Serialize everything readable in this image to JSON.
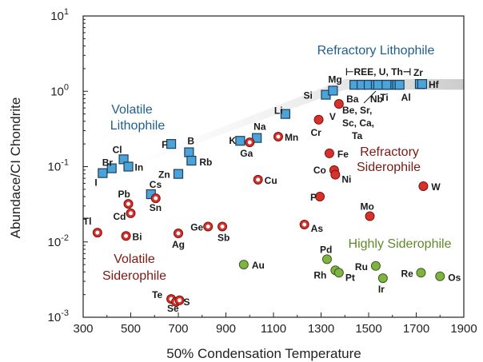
{
  "chart_data": {
    "type": "scatter",
    "title": "",
    "xlabel": "50% Condensation Temperature",
    "ylabel": "Abundace/CI Chondrite",
    "xlim": [
      300,
      1900
    ],
    "ylim_log10": [
      -3,
      1
    ],
    "yscale": "log",
    "x_ticks": [
      "300",
      "500",
      "700",
      "900",
      "1100",
      "1300",
      "1500",
      "1700",
      "1900"
    ],
    "y_ticks": [
      {
        "base": "10",
        "exp": "-3"
      },
      {
        "base": "10",
        "exp": "-2"
      },
      {
        "base": "10",
        "exp": "-1"
      },
      {
        "base": "10",
        "exp": "0"
      },
      {
        "base": "10",
        "exp": "1"
      }
    ],
    "colors": {
      "lithophile_fill": "#4ba3d8",
      "lithophile_stroke": "#1c3f5e",
      "siderophile_fill": "#d9302a",
      "siderophile_stroke": "#7a1212",
      "highly_fill": "#7fb342",
      "highly_stroke": "#3e5a1f",
      "ann_blue": "#1f5f8f",
      "ann_red": "#7a1a12",
      "ann_green": "#5f8a2a",
      "band": "#cccccc"
    },
    "annotations": {
      "volatile_lithophile": [
        "Volatile",
        "Lithophile"
      ],
      "refractory_lithophile": "Refractory Lithophile",
      "refractory_siderophile": [
        "Refractory",
        "Siderophile"
      ],
      "volatile_siderophile": [
        "Volatile",
        "Siderophile"
      ],
      "highly_siderophile": "Highly Siderophile",
      "ree": "⊢REE, U, Th⊣",
      "be_group": [
        "Be, Sr,",
        "Sc, Ca,",
        "Ta"
      ]
    },
    "series": [
      {
        "group": "lithophile",
        "marker": "square",
        "points": [
          {
            "label": "I",
            "x": 382,
            "y": 0.082
          },
          {
            "label": "Br",
            "x": 420,
            "y": 0.095
          },
          {
            "label": "Cl",
            "x": 470,
            "y": 0.125
          },
          {
            "label": "In",
            "x": 490,
            "y": 0.1
          },
          {
            "label": "Cs",
            "x": 585,
            "y": 0.043
          },
          {
            "label": "Zn",
            "x": 700,
            "y": 0.08
          },
          {
            "label": "F",
            "x": 670,
            "y": 0.2
          },
          {
            "label": "B",
            "x": 745,
            "y": 0.155
          },
          {
            "label": "Rb",
            "x": 755,
            "y": 0.12
          },
          {
            "label": "K",
            "x": 960,
            "y": 0.22
          },
          {
            "label": "Na",
            "x": 1030,
            "y": 0.24
          },
          {
            "label": "Li",
            "x": 1150,
            "y": 0.5
          },
          {
            "label": "Si",
            "x": 1320,
            "y": 0.9
          },
          {
            "label": "Mg",
            "x": 1350,
            "y": 1.02
          },
          {
            "label": "Ba",
            "x": 1440,
            "y": 1.22
          },
          {
            "label": "",
            "x": 1470,
            "y": 1.22
          },
          {
            "label": "",
            "x": 1500,
            "y": 1.22
          },
          {
            "label": "",
            "x": 1530,
            "y": 1.22
          },
          {
            "label": "",
            "x": 1560,
            "y": 1.22
          },
          {
            "label": "",
            "x": 1590,
            "y": 1.22
          },
          {
            "label": "",
            "x": 1620,
            "y": 1.22
          },
          {
            "label": "Nb",
            "x": 1540,
            "y": 1.22
          },
          {
            "label": "Ti",
            "x": 1575,
            "y": 1.22
          },
          {
            "label": "Al",
            "x": 1630,
            "y": 1.22
          },
          {
            "label": "Zr",
            "x": 1715,
            "y": 1.25
          },
          {
            "label": "Hf",
            "x": 1725,
            "y": 1.25
          }
        ]
      },
      {
        "group": "volatile_siderophile",
        "marker": "ring",
        "points": [
          {
            "label": "Tl",
            "x": 360,
            "y": 0.0133
          },
          {
            "label": "Bi",
            "x": 480,
            "y": 0.012
          },
          {
            "label": "Pb",
            "x": 490,
            "y": 0.032
          },
          {
            "label": "Cd",
            "x": 500,
            "y": 0.024
          },
          {
            "label": "Sn",
            "x": 605,
            "y": 0.038
          },
          {
            "label": "Ag",
            "x": 700,
            "y": 0.013
          },
          {
            "label": "Ge",
            "x": 825,
            "y": 0.016
          },
          {
            "label": "Sb",
            "x": 885,
            "y": 0.016
          },
          {
            "label": "Ga",
            "x": 1000,
            "y": 0.21
          },
          {
            "label": "Mn",
            "x": 1120,
            "y": 0.25
          },
          {
            "label": "Cu",
            "x": 1035,
            "y": 0.067
          },
          {
            "label": "As",
            "x": 1230,
            "y": 0.017
          },
          {
            "label": "Te",
            "x": 670,
            "y": 0.00175
          },
          {
            "label": "Se",
            "x": 690,
            "y": 0.0016
          },
          {
            "label": "S",
            "x": 705,
            "y": 0.00168
          }
        ]
      },
      {
        "group": "refractory_siderophile",
        "marker": "circle",
        "points": [
          {
            "label": "Cr",
            "x": 1290,
            "y": 0.42
          },
          {
            "label": "V",
            "x": 1375,
            "y": 0.68
          },
          {
            "label": "Fe",
            "x": 1335,
            "y": 0.15
          },
          {
            "label": "Co",
            "x": 1355,
            "y": 0.09
          },
          {
            "label": "Ni",
            "x": 1360,
            "y": 0.078
          },
          {
            "label": "P",
            "x": 1295,
            "y": 0.04
          },
          {
            "label": "Mo",
            "x": 1505,
            "y": 0.022
          },
          {
            "label": "W",
            "x": 1730,
            "y": 0.055
          }
        ]
      },
      {
        "group": "highly_siderophile",
        "marker": "circle",
        "points": [
          {
            "label": "Au",
            "x": 975,
            "y": 0.005
          },
          {
            "label": "Pd",
            "x": 1325,
            "y": 0.0059
          },
          {
            "label": "Rh",
            "x": 1360,
            "y": 0.0042
          },
          {
            "label": "Pt",
            "x": 1375,
            "y": 0.0039
          },
          {
            "label": "Ru",
            "x": 1530,
            "y": 0.0048
          },
          {
            "label": "Ir",
            "x": 1560,
            "y": 0.0033
          },
          {
            "label": "Re",
            "x": 1720,
            "y": 0.0039
          },
          {
            "label": "Os",
            "x": 1800,
            "y": 0.0035
          }
        ]
      }
    ]
  }
}
